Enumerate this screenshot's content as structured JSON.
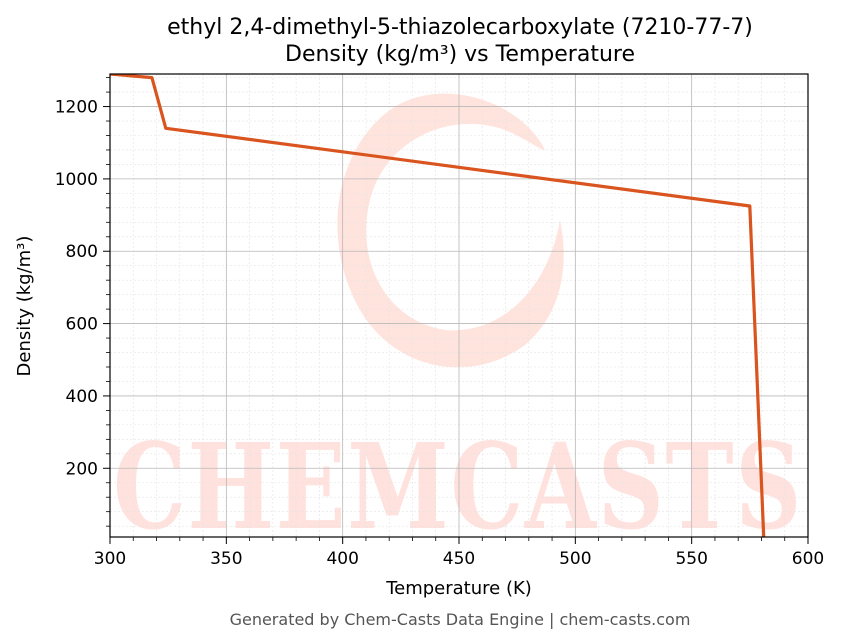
{
  "chart_data": {
    "type": "line",
    "title": "ethyl 2,4-dimethyl-5-thiazolecarboxylate (7210-77-7)",
    "subtitle": "Density (kg/m³) vs Temperature",
    "xlabel": "Temperature (K)",
    "ylabel": "Density (kg/m³)",
    "xlim": [
      300,
      600
    ],
    "ylim": [
      10,
      1290
    ],
    "xticks": [
      300,
      350,
      400,
      450,
      500,
      550,
      600
    ],
    "yticks": [
      200,
      400,
      600,
      800,
      1000,
      1200
    ],
    "grid": true,
    "series": [
      {
        "color": "#d9541e",
        "x": [
          300,
          318,
          324,
          575,
          581,
          600
        ],
        "y": [
          1290,
          1280,
          1140,
          925,
          5,
          5
        ]
      }
    ]
  },
  "watermark": {
    "text": "CHEMCASTS",
    "color": "#ffd9d2"
  },
  "footer": "Generated by Chem-Casts Data Engine | chem-casts.com"
}
